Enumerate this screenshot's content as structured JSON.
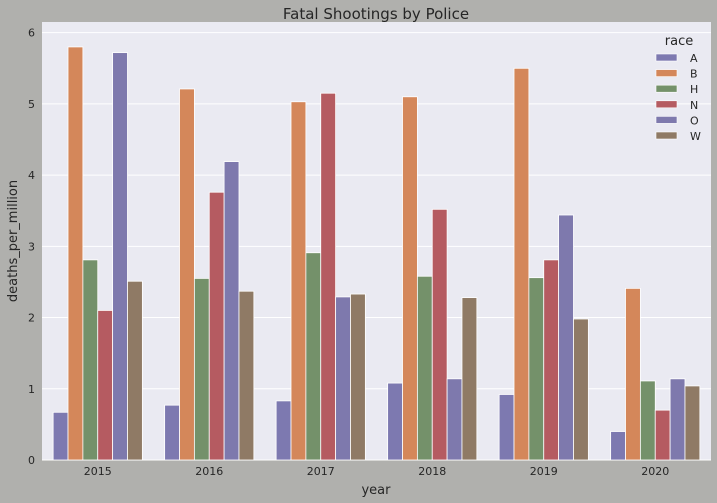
{
  "chart_data": {
    "type": "bar",
    "title": "Fatal Shootings by Police",
    "xlabel": "year",
    "ylabel": "deaths_per_million",
    "categories": [
      "2015",
      "2016",
      "2017",
      "2018",
      "2019",
      "2020"
    ],
    "ylim": [
      0,
      6.15
    ],
    "yticks": [
      0,
      1,
      2,
      3,
      4,
      5,
      6
    ],
    "grid": true,
    "legend": {
      "title": "race",
      "placement": "top-right"
    },
    "series": [
      {
        "name": "A",
        "color": "#7d79b0",
        "values": [
          0.67,
          0.77,
          0.83,
          1.08,
          0.92,
          0.4
        ]
      },
      {
        "name": "B",
        "color": "#d4875a",
        "values": [
          5.8,
          5.21,
          5.03,
          5.1,
          5.5,
          2.41
        ]
      },
      {
        "name": "H",
        "color": "#74916a",
        "values": [
          2.81,
          2.55,
          2.91,
          2.58,
          2.56,
          1.11
        ]
      },
      {
        "name": "N",
        "color": "#b55b61",
        "values": [
          2.1,
          3.76,
          5.15,
          3.52,
          2.81,
          0.7
        ]
      },
      {
        "name": "O",
        "color": "#7e79ad",
        "values": [
          5.72,
          4.19,
          2.29,
          1.14,
          3.44,
          1.14
        ]
      },
      {
        "name": "W",
        "color": "#8f7a65",
        "values": [
          2.51,
          2.37,
          2.33,
          2.28,
          1.98,
          1.04
        ]
      }
    ]
  }
}
